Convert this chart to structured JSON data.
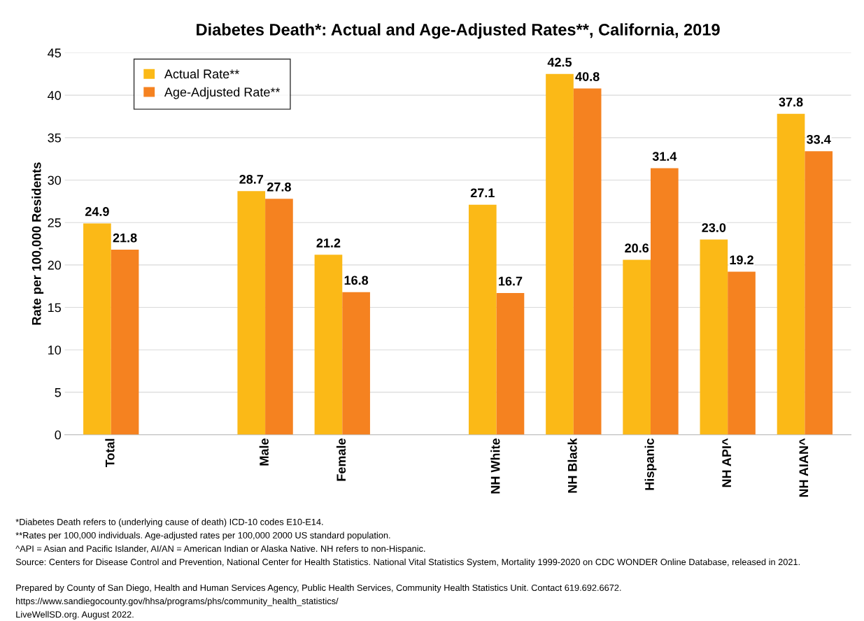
{
  "chart_data": {
    "type": "bar",
    "title": "Diabetes Death*: Actual and Age-Adjusted Rates**, California, 2019",
    "ylabel": "Rate per 100,000 Residents",
    "categories": [
      "Total",
      null,
      "Male",
      "Female",
      null,
      "NH White",
      "NH Black",
      "Hispanic",
      "NH API^",
      "NH AIAN^"
    ],
    "series": [
      {
        "name": "Actual Rate**",
        "color": "#fbb917",
        "values": [
          24.9,
          null,
          28.7,
          21.2,
          null,
          27.1,
          42.5,
          20.6,
          23.0,
          37.8
        ],
        "value_labels": [
          "24.9",
          null,
          "28.7",
          "21.2",
          null,
          "27.1",
          "42.5",
          "20.6",
          "23.0",
          "37.8"
        ]
      },
      {
        "name": "Age-Adjusted Rate**",
        "color": "#f58220",
        "values": [
          21.8,
          null,
          27.8,
          16.8,
          null,
          16.7,
          40.8,
          31.4,
          19.2,
          33.4
        ],
        "value_labels": [
          "21.8",
          null,
          "27.8",
          "16.8",
          null,
          "16.7",
          "40.8",
          "31.4",
          "19.2",
          "33.4"
        ]
      }
    ],
    "ylim": [
      0,
      45
    ],
    "yticks": [
      0,
      5,
      10,
      15,
      20,
      25,
      30,
      35,
      40,
      45
    ],
    "grid": "y",
    "legend": "top left",
    "annotations": [
      "*Diabetes Death refers to (underlying cause of death) ICD-10 codes E10-E14.",
      "**Rates per 100,000 individuals. Age-adjusted rates per 100,000 2000 US standard population.",
      "^API = Asian and Pacific Islander, AI/AN = American Indian or Alaska Native. NH refers to non-Hispanic.",
      "Source: Centers for Disease Control and Prevention, National Center for Health Statistics. National Vital Statistics System, Mortality 1999-2020 on CDC WONDER Online Database, released in 2021.",
      "Prepared by County of San Diego, Health and Human Services Agency, Public Health Services, Community Health Statistics Unit. Contact 619.692.6672.",
      "https://www.sandiegocounty.gov/hhsa/programs/phs/community_health_statistics/",
      "LiveWellSD.org. August 2022."
    ]
  }
}
